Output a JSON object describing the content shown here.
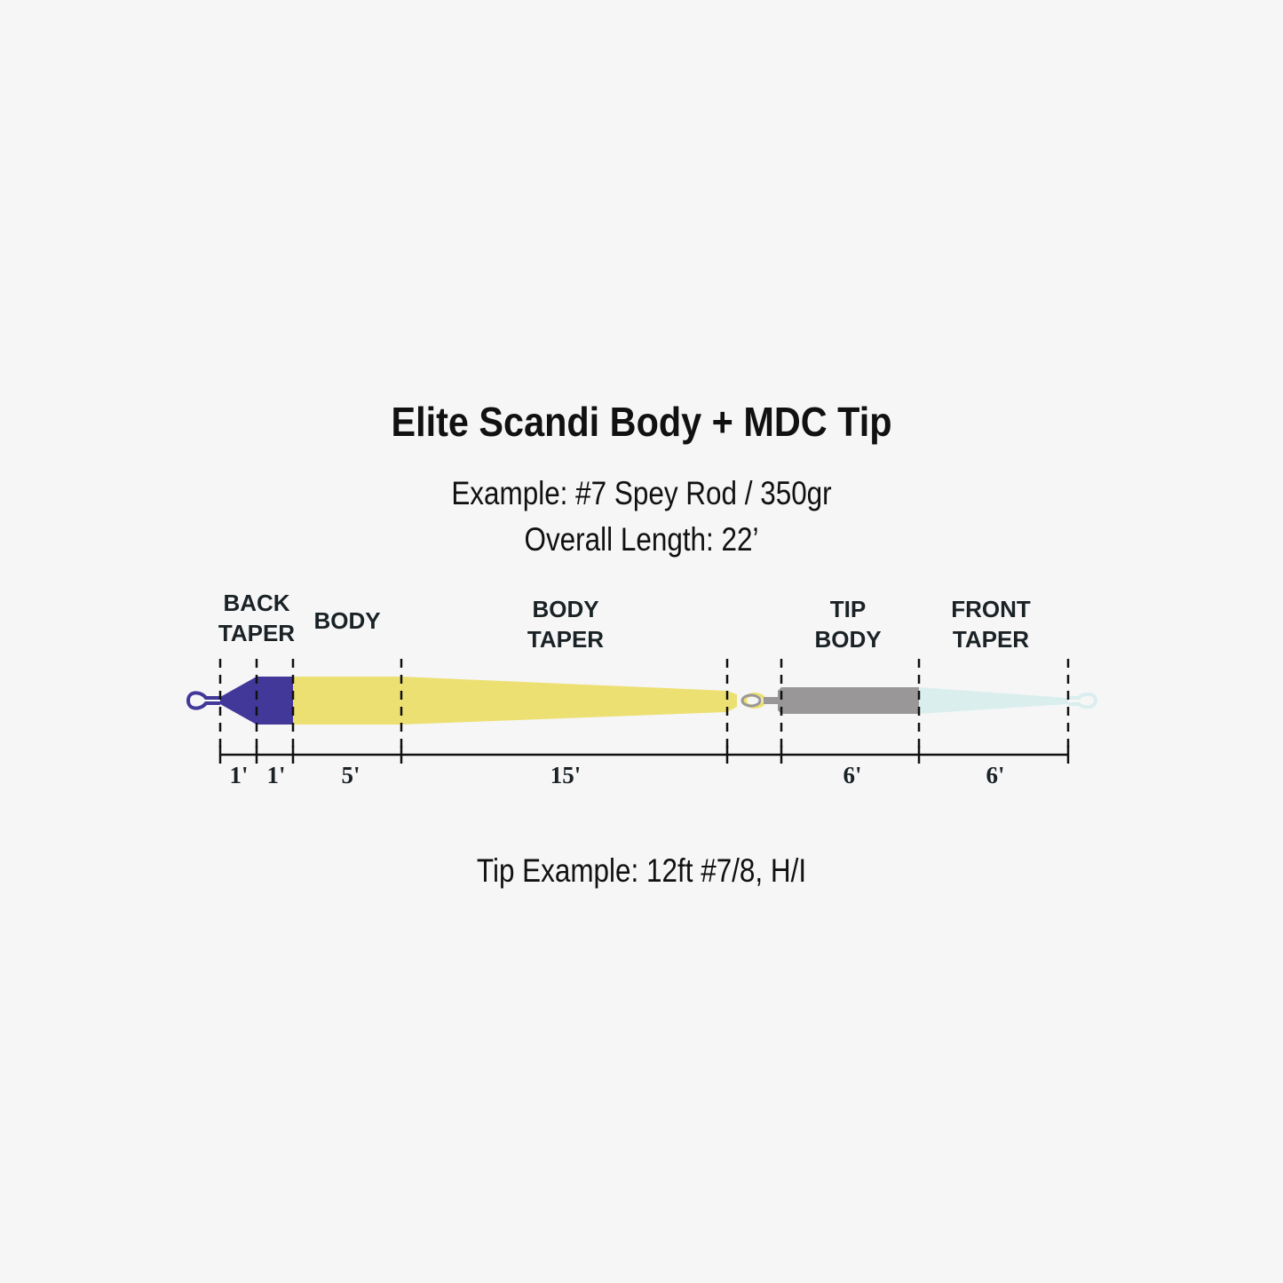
{
  "title": "Elite Scandi Body + MDC Tip",
  "subtitle_lines": [
    "Example: #7 Spey Rod / 350gr",
    "Overall Length: 22’"
  ],
  "tip_example": "Tip Example: 12ft #7/8, H/I",
  "sections": [
    {
      "label_lines": [
        "BACK",
        "TAPER"
      ],
      "lengths": [
        "1'",
        "1'"
      ]
    },
    {
      "label_lines": [
        "BODY"
      ],
      "lengths": [
        "5'"
      ]
    },
    {
      "label_lines": [
        "BODY",
        "TAPER"
      ],
      "lengths": [
        "15'"
      ]
    },
    {
      "label_lines": [
        "TIP",
        "BODY"
      ],
      "lengths": [
        "6'"
      ]
    },
    {
      "label_lines": [
        "FRONT",
        "TAPER"
      ],
      "lengths": [
        "6'"
      ]
    }
  ],
  "colors": {
    "background": "#f6f6f6",
    "back_taper": "#41389a",
    "body": "#ede072",
    "tip_body": "#999797",
    "front_taper": "#dbeeee"
  }
}
